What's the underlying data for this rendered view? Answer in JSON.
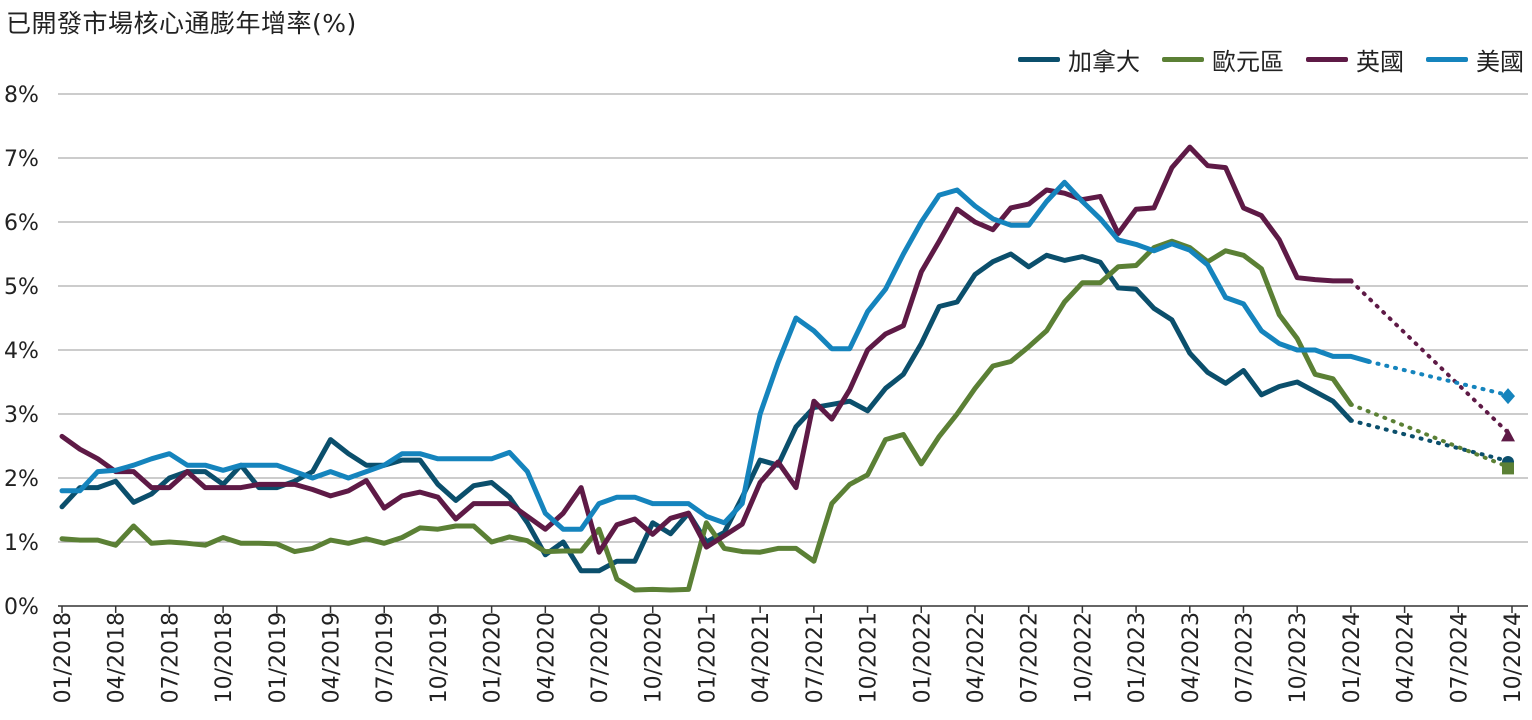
{
  "title": "已開發市場核心通膨年增率(%)",
  "legend": [
    {
      "name": "加拿大",
      "color": "#0b4f6c"
    },
    {
      "name": "歐元區",
      "color": "#5b8035"
    },
    {
      "name": "英國",
      "color": "#5e1a46"
    },
    {
      "name": "美國",
      "color": "#1584bd"
    }
  ],
  "chart_data": {
    "type": "line",
    "x_ticks": [
      "01/2018",
      "04/2018",
      "07/2018",
      "10/2018",
      "01/2019",
      "04/2019",
      "07/2019",
      "10/2019",
      "01/2020",
      "04/2020",
      "07/2020",
      "10/2020",
      "01/2021",
      "04/2021",
      "07/2021",
      "10/2021",
      "01/2022",
      "04/2022",
      "07/2022",
      "10/2022",
      "01/2023",
      "04/2023",
      "07/2023",
      "10/2023",
      "01/2024",
      "04/2024",
      "07/2024",
      "10/2024"
    ],
    "y_ticks": [
      "0%",
      "1%",
      "2%",
      "3%",
      "4%",
      "5%",
      "6%",
      "7%",
      "8%"
    ],
    "ylim": [
      0,
      8
    ],
    "x_range_months": [
      0,
      81
    ],
    "grid": true,
    "legend_position": "top-right",
    "series": [
      {
        "name": "加拿大",
        "color": "#0b4f6c",
        "marker": "circle",
        "values": [
          1.55,
          1.85,
          1.85,
          1.95,
          1.62,
          1.75,
          2.0,
          2.1,
          2.1,
          1.9,
          2.2,
          1.85,
          1.85,
          1.95,
          2.1,
          2.6,
          2.38,
          2.2,
          2.2,
          2.28,
          2.28,
          1.9,
          1.65,
          1.88,
          1.93,
          1.7,
          1.3,
          0.8,
          1.0,
          0.55,
          0.55,
          0.7,
          0.7,
          1.3,
          1.13,
          1.45,
          1.0,
          1.15,
          1.7,
          2.28,
          2.2,
          2.8,
          3.1,
          3.15,
          3.2,
          3.05,
          3.4,
          3.62,
          4.1,
          4.68,
          4.75,
          5.18,
          5.38,
          5.5,
          5.3,
          5.48,
          5.4,
          5.46,
          5.37,
          4.97,
          4.95,
          4.65,
          4.47,
          3.95,
          3.65,
          3.48,
          3.68,
          3.3,
          3.43,
          3.5,
          3.35,
          3.2,
          2.9
        ],
        "forecast": [
          [
            72,
            2.9
          ],
          [
            81,
            2.25
          ]
        ]
      },
      {
        "name": "歐元區",
        "color": "#5b8035",
        "marker": "square",
        "values": [
          1.05,
          1.03,
          1.03,
          0.95,
          1.25,
          0.98,
          1.0,
          0.98,
          0.95,
          1.07,
          0.98,
          0.98,
          0.97,
          0.85,
          0.9,
          1.03,
          0.98,
          1.05,
          0.98,
          1.07,
          1.22,
          1.2,
          1.25,
          1.25,
          1.0,
          1.08,
          1.02,
          0.85,
          0.86,
          0.86,
          1.2,
          0.42,
          0.25,
          0.26,
          0.25,
          0.26,
          1.3,
          0.9,
          0.85,
          0.84,
          0.9,
          0.9,
          0.7,
          1.6,
          1.9,
          2.05,
          2.6,
          2.68,
          2.22,
          2.65,
          3.0,
          3.4,
          3.75,
          3.82,
          4.05,
          4.3,
          4.75,
          5.05,
          5.05,
          5.3,
          5.32,
          5.6,
          5.7,
          5.6,
          5.38,
          5.55,
          5.48,
          5.27,
          4.55,
          4.18,
          3.62,
          3.55,
          3.15
        ],
        "forecast": [
          [
            72,
            3.15
          ],
          [
            81,
            2.15
          ]
        ]
      },
      {
        "name": "英國",
        "color": "#5e1a46",
        "marker": "triangle",
        "values": [
          2.65,
          2.45,
          2.3,
          2.1,
          2.1,
          1.85,
          1.85,
          2.1,
          1.85,
          1.85,
          1.85,
          1.9,
          1.9,
          1.9,
          1.82,
          1.72,
          1.8,
          1.96,
          1.53,
          1.72,
          1.78,
          1.7,
          1.36,
          1.6,
          1.6,
          1.6,
          1.4,
          1.2,
          1.45,
          1.85,
          0.84,
          1.27,
          1.36,
          1.12,
          1.37,
          1.45,
          0.92,
          1.1,
          1.28,
          1.93,
          2.25,
          1.85,
          3.2,
          2.92,
          3.38,
          4.0,
          4.25,
          4.38,
          5.22,
          5.7,
          6.2,
          6.0,
          5.88,
          6.22,
          6.28,
          6.5,
          6.45,
          6.35,
          6.4,
          5.82,
          6.2,
          6.22,
          6.85,
          7.17,
          6.88,
          6.85,
          6.22,
          6.1,
          5.72,
          5.13,
          5.1,
          5.08,
          5.08
        ],
        "forecast": [
          [
            72,
            5.08
          ],
          [
            81,
            2.65
          ]
        ]
      },
      {
        "name": "美國",
        "color": "#1584bd",
        "marker": "diamond",
        "values": [
          1.8,
          1.8,
          2.1,
          2.12,
          2.2,
          2.3,
          2.38,
          2.2,
          2.2,
          2.12,
          2.2,
          2.2,
          2.2,
          2.1,
          2.0,
          2.1,
          2.0,
          2.1,
          2.2,
          2.38,
          2.38,
          2.3,
          2.3,
          2.3,
          2.3,
          2.4,
          2.1,
          1.45,
          1.2,
          1.2,
          1.6,
          1.7,
          1.7,
          1.6,
          1.6,
          1.6,
          1.4,
          1.3,
          1.6,
          3.0,
          3.8,
          4.5,
          4.3,
          4.02,
          4.02,
          4.6,
          4.95,
          5.5,
          6.0,
          6.42,
          6.5,
          6.25,
          6.05,
          5.95,
          5.95,
          6.32,
          6.62,
          6.32,
          6.05,
          5.72,
          5.65,
          5.55,
          5.66,
          5.56,
          5.33,
          4.82,
          4.72,
          4.3,
          4.1,
          4.0,
          4.0,
          3.9,
          3.9,
          3.82
        ],
        "forecast": [
          [
            73,
            3.82
          ],
          [
            81,
            3.28
          ]
        ]
      }
    ]
  }
}
